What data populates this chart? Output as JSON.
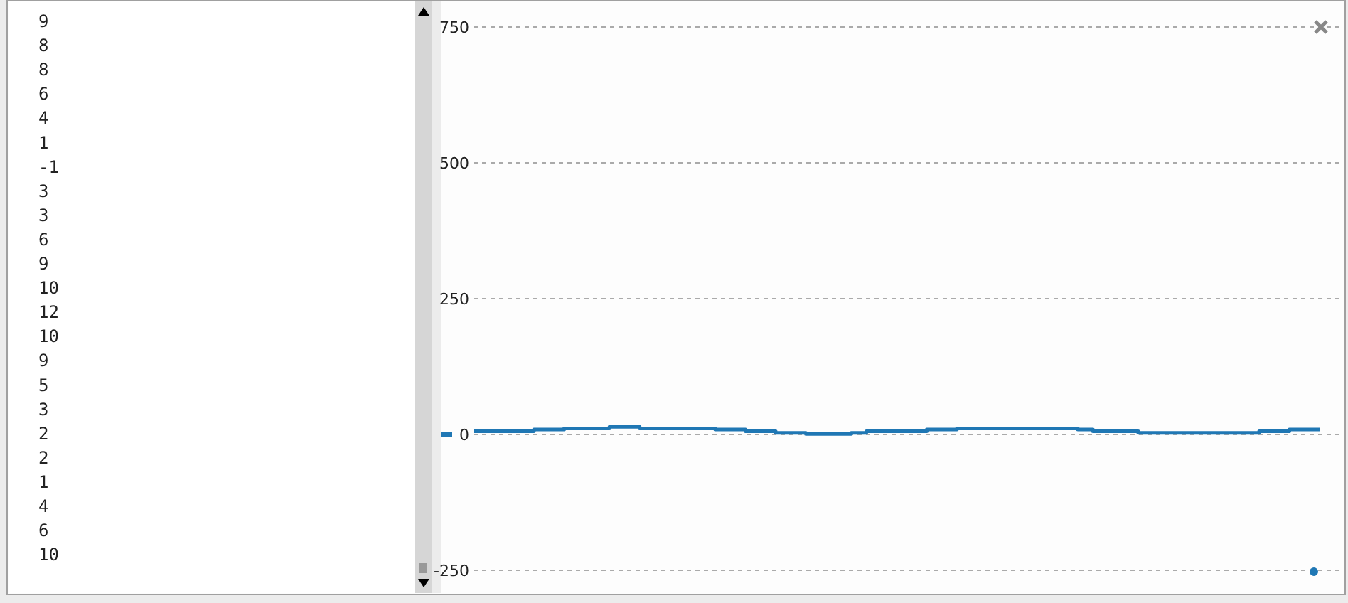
{
  "chart_data": [
    {
      "type": "other",
      "annotations": [
        "9",
        "8",
        "8",
        "6",
        "4",
        "1",
        "-1",
        "3",
        "3",
        "6",
        "9",
        "10",
        "12",
        "10",
        "9",
        "5",
        "3",
        "2",
        "2",
        "1",
        "4",
        "6",
        "10"
      ]
    },
    {
      "type": "step",
      "categories": [
        null,
        null,
        null,
        null,
        null,
        null,
        null,
        null,
        null,
        null,
        null,
        null,
        null,
        null,
        null,
        null,
        null,
        null,
        null,
        null,
        null,
        null,
        null,
        null,
        null,
        null,
        null,
        null,
        null,
        null,
        null,
        null,
        null,
        null,
        null,
        null,
        null,
        null,
        null,
        null,
        null,
        null,
        null,
        null,
        null,
        null,
        null,
        null,
        null,
        null,
        null,
        null,
        null,
        null,
        null,
        null
      ],
      "series": [
        {
          "color": "#1f77b4",
          "values": [
            6,
            6,
            6,
            6,
            9,
            9,
            11,
            11,
            11,
            14,
            14,
            11,
            11,
            11,
            11,
            11,
            9,
            9,
            6,
            6,
            3,
            3,
            1,
            1,
            1,
            3,
            6,
            6,
            6,
            6,
            9,
            9,
            11,
            11,
            11,
            11,
            11,
            11,
            11,
            11,
            9,
            6,
            6,
            6,
            3,
            3,
            3,
            3,
            3,
            3,
            3,
            3,
            6,
            6,
            9,
            9
          ]
        }
      ],
      "ylim": [
        -250,
        750
      ],
      "yticks": [
        -250,
        0,
        250,
        500,
        750
      ],
      "grid": "y",
      "line_style": "solid",
      "marker": "none"
    }
  ]
}
